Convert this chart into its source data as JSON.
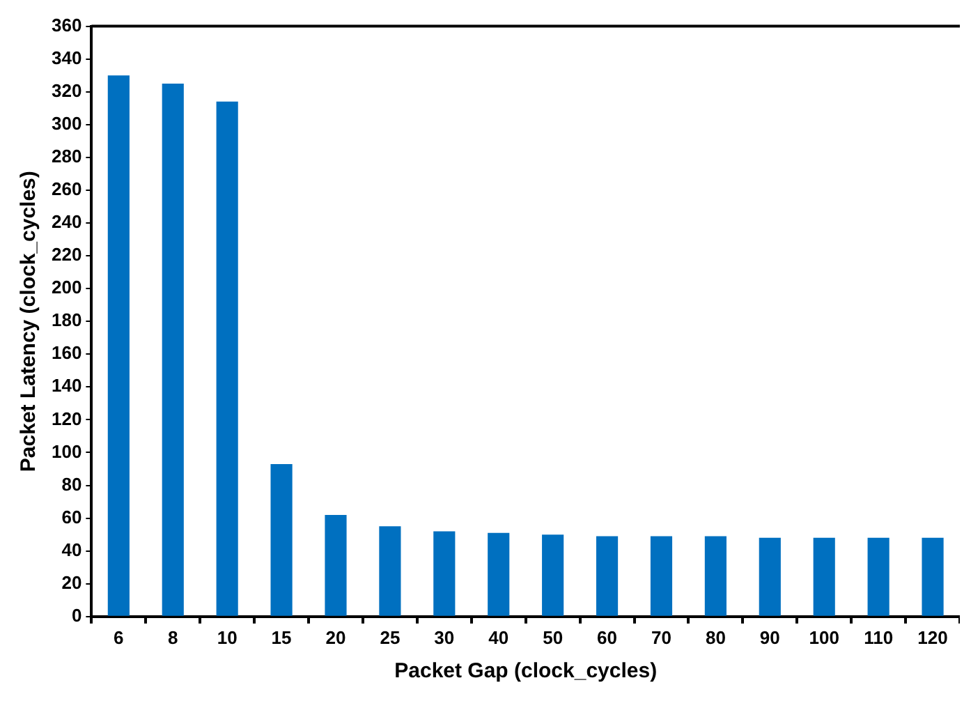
{
  "chart_data": {
    "type": "bar",
    "xlabel": "Packet Gap (clock_cycles)",
    "ylabel": "Packet Latency (clock_cycles)",
    "categories": [
      "6",
      "8",
      "10",
      "15",
      "20",
      "25",
      "30",
      "40",
      "50",
      "60",
      "70",
      "80",
      "90",
      "100",
      "110",
      "120"
    ],
    "values": [
      330,
      325,
      314,
      93,
      62,
      55,
      52,
      51,
      50,
      49,
      49,
      49,
      48,
      48,
      48,
      48
    ],
    "color": "#0070c0",
    "ylim": [
      0,
      360
    ],
    "yticks": [
      0,
      20,
      40,
      60,
      80,
      100,
      120,
      140,
      160,
      180,
      200,
      220,
      240,
      260,
      280,
      300,
      320,
      340,
      360
    ],
    "grid": false,
    "legend": false
  }
}
